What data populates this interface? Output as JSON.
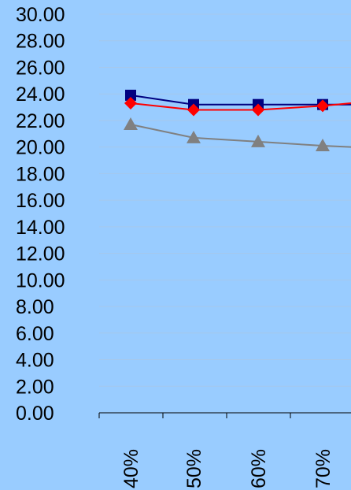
{
  "chart_data": {
    "type": "line",
    "categories": [
      "40%",
      "50%",
      "60%",
      "70%"
    ],
    "ylim": [
      0,
      30
    ],
    "y_ticks": [
      "0.00",
      "2.00",
      "4.00",
      "6.00",
      "8.00",
      "10.00",
      "12.00",
      "14.00",
      "16.00",
      "18.00",
      "20.00",
      "22.00",
      "24.00",
      "26.00",
      "28.00",
      "30.00"
    ],
    "grid": true,
    "series": [
      {
        "color": "#000080",
        "marker": "square",
        "values": [
          23.9,
          23.2,
          23.2,
          23.2
        ],
        "extends_right_to": 23.2
      },
      {
        "color": "#ff0000",
        "marker": "diamond",
        "values": [
          23.3,
          22.8,
          22.8,
          23.1
        ],
        "extends_right_to": 23.3
      },
      {
        "color": "#808080",
        "marker": "triangle",
        "values": [
          21.7,
          20.7,
          20.4,
          20.1
        ],
        "extends_right_to": 20.0
      }
    ]
  },
  "colors": {
    "background": "#99ccff",
    "gridline": "#a6c8ec",
    "axis": "#000000"
  }
}
